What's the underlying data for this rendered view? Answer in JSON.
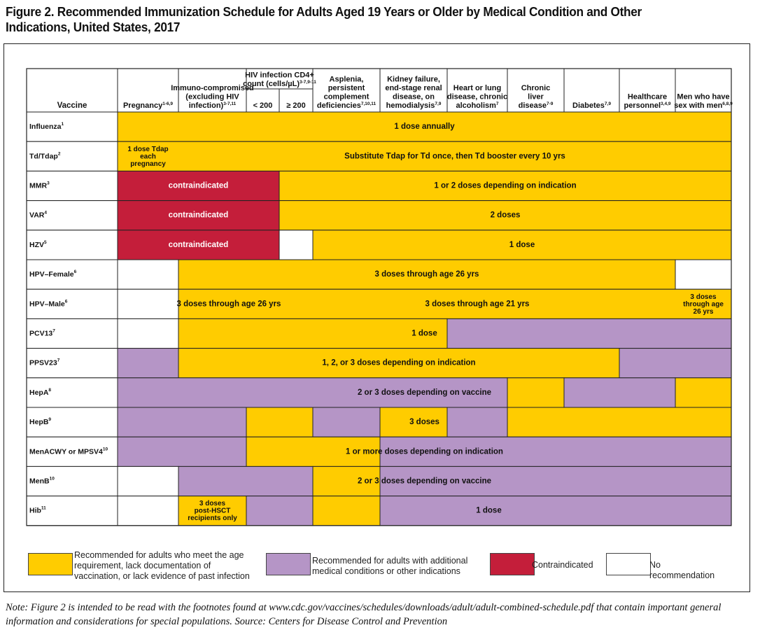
{
  "title": "Figure 2. Recommended Immunization Schedule for Adults Aged 19 Years or Older by Medical Condition and Other Indications, United States, 2017",
  "note": "Note: Figure 2 is intended to be read with the footnotes found at www.cdc.gov/vaccines/schedules/downloads/adult/adult-combined-schedule.pdf that contain important general information and considerations for special populations.  Source: Centers for Disease Control and Prevention",
  "colors": {
    "recommended": "#FFCC00",
    "additional": "#B595C6",
    "contraindicated": "#C41E3A",
    "none": "#FFFFFF"
  },
  "legend": [
    {
      "status": "recommended",
      "label": "Recommended for adults who meet the age requirement, lack documentation of vaccination, or lack evidence of past infection"
    },
    {
      "status": "additional",
      "label": "Recommended for adults with additional medical conditions or other indications"
    },
    {
      "status": "contraindicated",
      "label": "Contraindicated"
    },
    {
      "status": "none",
      "label": "No recommendation"
    }
  ],
  "chart_data": {
    "type": "table",
    "row_header_label": "Vaccine",
    "columns": [
      {
        "label": "Pregnancy",
        "sup": "1-6,9"
      },
      {
        "label": "Immuno-compromised (excluding HIV infection)",
        "sup": "3-7,11"
      },
      {
        "label": "HIV infection CD4+ count (cells/µL)",
        "sup": "3-7,9-11",
        "sub": [
          "< 200",
          "≥ 200"
        ]
      },
      {
        "label": "Asplenia, persistent complement deficiencies",
        "sup": "7,10,11"
      },
      {
        "label": "Kidney failure, end-stage renal disease, on hemodialysis",
        "sup": "7,9"
      },
      {
        "label": "Heart or lung disease, chronic alcoholism",
        "sup": "7"
      },
      {
        "label": "Chronic liver disease",
        "sup": "7-9"
      },
      {
        "label": "Diabetes",
        "sup": "7,9"
      },
      {
        "label": "Healthcare personnel",
        "sup": "3,4,9"
      },
      {
        "label": "Men who have sex with men",
        "sup": "6,8,9"
      }
    ],
    "rows": [
      {
        "vaccine": "Influenza",
        "sup": "1",
        "cells": [
          "R",
          "R",
          "R",
          "R",
          "R",
          "R",
          "R",
          "R",
          "R",
          "R",
          "R"
        ],
        "labels": [
          {
            "text": "1 dose annually"
          }
        ]
      },
      {
        "vaccine": "Td/Tdap",
        "sup": "2",
        "cells": [
          "R",
          "R",
          "R",
          "R",
          "R",
          "R",
          "R",
          "R",
          "R",
          "R",
          "R"
        ],
        "labels": [
          {
            "text": "1 dose Tdap each pregnancy",
            "span": [
              0,
              0
            ]
          },
          {
            "text": "Substitute Tdap for Td once, then Td booster every 10 yrs",
            "span": [
              1,
              10
            ]
          }
        ]
      },
      {
        "vaccine": "MMR",
        "sup": "3",
        "cells": [
          "C",
          "C",
          "C",
          "R",
          "R",
          "R",
          "R",
          "R",
          "R",
          "R",
          "R"
        ],
        "labels": [
          {
            "text": "contraindicated",
            "span": [
              0,
              2
            ]
          },
          {
            "text": "1 or 2 doses depending on indication",
            "span": [
              3,
              10
            ]
          }
        ]
      },
      {
        "vaccine": "VAR",
        "sup": "4",
        "cells": [
          "C",
          "C",
          "C",
          "R",
          "R",
          "R",
          "R",
          "R",
          "R",
          "R",
          "R"
        ],
        "labels": [
          {
            "text": "contraindicated",
            "span": [
              0,
              2
            ]
          },
          {
            "text": "2 doses",
            "span": [
              3,
              10
            ]
          }
        ]
      },
      {
        "vaccine": "HZV",
        "sup": "5",
        "cells": [
          "C",
          "C",
          "C",
          "N",
          "R",
          "R",
          "R",
          "R",
          "R",
          "R",
          "R"
        ],
        "labels": [
          {
            "text": "contraindicated",
            "span": [
              0,
              2
            ]
          },
          {
            "text": "1 dose",
            "span": [
              4,
              10
            ]
          }
        ]
      },
      {
        "vaccine": "HPV–Female",
        "sup": "6",
        "cells": [
          "N",
          "R",
          "R",
          "R",
          "R",
          "R",
          "R",
          "R",
          "R",
          "R",
          "N"
        ],
        "labels": [
          {
            "text": "3 doses through age 26 yrs",
            "span": [
              1,
              9
            ]
          }
        ]
      },
      {
        "vaccine": "HPV–Male",
        "sup": "6",
        "cells": [
          "N",
          "R",
          "R",
          "R",
          "R",
          "R",
          "R",
          "R",
          "R",
          "R",
          "R"
        ],
        "labels": [
          {
            "text": "3 doses through age 26 yrs",
            "span": [
              1,
              2
            ]
          },
          {
            "text": "3 doses through age 21 yrs",
            "span": [
              3,
              9
            ]
          },
          {
            "text": "3 doses through age 26 yrs",
            "span": [
              10,
              10
            ]
          }
        ]
      },
      {
        "vaccine": "PCV13",
        "sup": "7",
        "cells": [
          "N",
          "R",
          "R",
          "R",
          "R",
          "R",
          "A",
          "A",
          "A",
          "A",
          "A"
        ],
        "labels": [
          {
            "text": "1 dose"
          }
        ]
      },
      {
        "vaccine": "PPSV23",
        "sup": "7",
        "cells": [
          "A",
          "R",
          "R",
          "R",
          "R",
          "R",
          "R",
          "R",
          "R",
          "A",
          "A"
        ],
        "labels": [
          {
            "text": "1, 2, or 3 doses depending on indication",
            "span": [
              1,
              8
            ]
          }
        ]
      },
      {
        "vaccine": "HepA",
        "sup": "8",
        "cells": [
          "A",
          "A",
          "A",
          "A",
          "A",
          "A",
          "A",
          "R",
          "A",
          "A",
          "R"
        ],
        "labels": [
          {
            "text": "2 or 3 doses depending on vaccine"
          }
        ]
      },
      {
        "vaccine": "HepB",
        "sup": "9",
        "cells": [
          "A",
          "A",
          "R",
          "R",
          "A",
          "R",
          "A",
          "R",
          "R",
          "R",
          "R"
        ],
        "labels": [
          {
            "text": "3 doses"
          }
        ]
      },
      {
        "vaccine": "MenACWY or MPSV4",
        "sup": "10",
        "cells": [
          "A",
          "A",
          "R",
          "R",
          "R",
          "A",
          "A",
          "A",
          "A",
          "A",
          "A"
        ],
        "labels": [
          {
            "text": "1 or more doses depending on indication"
          }
        ]
      },
      {
        "vaccine": "MenB",
        "sup": "10",
        "cells": [
          "N",
          "A",
          "A",
          "A",
          "R",
          "A",
          "A",
          "A",
          "A",
          "A",
          "A"
        ],
        "labels": [
          {
            "text": "2 or 3 doses depending on vaccine"
          }
        ]
      },
      {
        "vaccine": "Hib",
        "sup": "11",
        "cells": [
          "N",
          "R",
          "A",
          "A",
          "R",
          "A",
          "A",
          "A",
          "A",
          "A",
          "A"
        ],
        "labels": [
          {
            "text": "3 doses post-HSCT recipients only",
            "span": [
              1,
              1
            ]
          },
          {
            "text": "1 dose",
            "span": [
              2,
              10
            ]
          }
        ]
      }
    ]
  }
}
